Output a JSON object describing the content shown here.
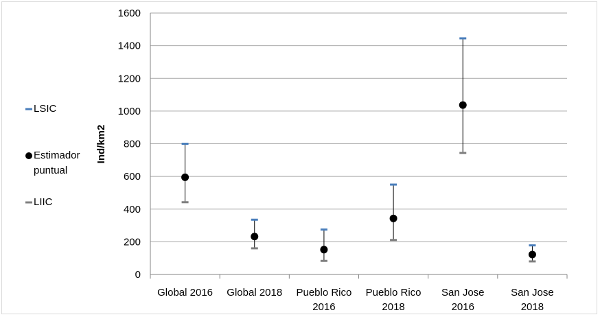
{
  "chart_data": {
    "type": "scatter",
    "categories": [
      "Global 2016",
      "Global 2018",
      "Pueblo Rico 2016",
      "Pueblo Rico 2018",
      "San Jose 2016",
      "San Jose 2018"
    ],
    "category_lines": [
      [
        "Global 2016"
      ],
      [
        "Global 2018"
      ],
      [
        "Pueblo Rico",
        "2016"
      ],
      [
        "Pueblo Rico",
        "2018"
      ],
      [
        "San Jose",
        "2016"
      ],
      [
        "San Jose",
        "2018"
      ]
    ],
    "series": [
      {
        "name": "LSIC",
        "values": [
          800,
          335,
          275,
          550,
          1445,
          178
        ]
      },
      {
        "name": "Estimador puntual",
        "values": [
          595,
          232,
          152,
          343,
          1037,
          122
        ]
      },
      {
        "name": "LIIC",
        "values": [
          442,
          160,
          83,
          211,
          744,
          80
        ]
      }
    ],
    "ylabel": "Ind/km2",
    "ylim": [
      0,
      1600
    ],
    "yticks": [
      0,
      200,
      400,
      600,
      800,
      1000,
      1200,
      1400,
      1600
    ],
    "grid": true,
    "legend_position": "left",
    "colors": {
      "lsic": "#4a7ebb",
      "point": "#000000",
      "liic": "#7f7f7f",
      "errorbar": "#000000",
      "grid": "#a6a6a6"
    }
  },
  "legend": {
    "lsic": "LSIC",
    "point_line1": "Estimador",
    "point_line2": "puntual",
    "liic": "LIIC"
  }
}
